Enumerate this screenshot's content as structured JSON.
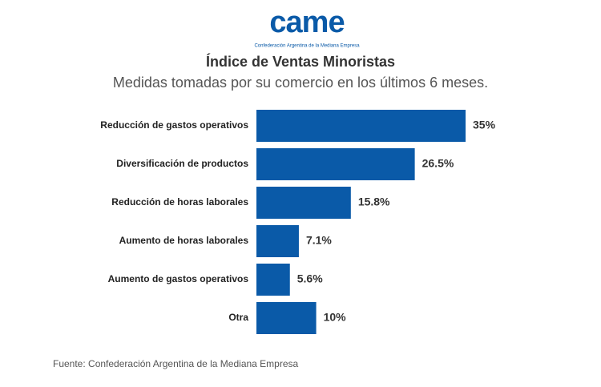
{
  "chart_data": {
    "type": "bar",
    "orientation": "horizontal",
    "logo": "came",
    "logo_caption": "Confederación Argentina de la Mediana Empresa",
    "title": "Índice de Ventas Minoristas",
    "subtitle": "Medidas tomadas por su comercio en los últimos 6 meses.",
    "categories": [
      "Reducción de gastos operativos",
      "Diversificación de productos",
      "Reducción de horas laborales",
      "Aumento de horas laborales",
      "Aumento de gastos operativos",
      "Otra"
    ],
    "values": [
      35,
      26.5,
      15.8,
      7.1,
      5.6,
      10
    ],
    "value_labels": [
      "35%",
      "26.5%",
      "15.8%",
      "7.1%",
      "5.6%",
      "10%"
    ],
    "color": "#0a5aa8",
    "source": "Fuente: Confederación Argentina de la Mediana Empresa"
  }
}
